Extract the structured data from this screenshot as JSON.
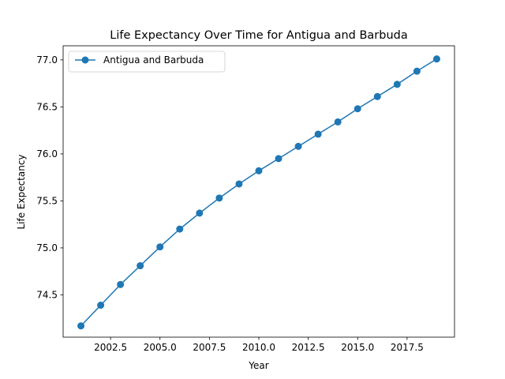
{
  "chart_data": {
    "type": "line",
    "title": "Life Expectancy Over Time for Antigua and Barbuda",
    "xlabel": "Year",
    "ylabel": "Life Expectancy",
    "xlim": [
      2000.1,
      2019.9
    ],
    "ylim": [
      74.05,
      77.15
    ],
    "xticks": [
      2002.5,
      2005.0,
      2007.5,
      2010.0,
      2012.5,
      2015.0,
      2017.5
    ],
    "xtick_labels": [
      "2002.5",
      "2005.0",
      "2007.5",
      "2010.0",
      "2012.5",
      "2015.0",
      "2017.5"
    ],
    "yticks": [
      74.5,
      75.0,
      75.5,
      76.0,
      76.5,
      77.0
    ],
    "ytick_labels": [
      "74.5",
      "75.0",
      "75.5",
      "76.0",
      "76.5",
      "77.0"
    ],
    "grid": false,
    "legend_position": "top-left",
    "series": [
      {
        "name": "Antigua and Barbuda",
        "color": "#1f77b4",
        "marker": "circle",
        "x": [
          2001,
          2002,
          2003,
          2004,
          2005,
          2006,
          2007,
          2008,
          2009,
          2010,
          2011,
          2012,
          2013,
          2014,
          2015,
          2016,
          2017,
          2018,
          2019
        ],
        "y": [
          74.17,
          74.39,
          74.61,
          74.81,
          75.01,
          75.2,
          75.37,
          75.53,
          75.68,
          75.82,
          75.95,
          76.08,
          76.21,
          76.34,
          76.48,
          76.61,
          76.74,
          76.88,
          77.01
        ]
      }
    ]
  }
}
